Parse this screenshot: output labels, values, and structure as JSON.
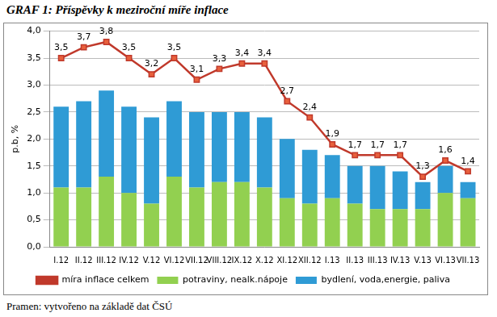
{
  "chart_data": {
    "type": "bar",
    "title": "GRAF 1: Příspěvky k meziroční míře inflace",
    "source": "Pramen: vytvořeno na základě dat ČSÚ",
    "y_label": "p.b, %",
    "categories": [
      "I.12",
      "II.12",
      "III.12",
      "IV.12",
      "V.12",
      "VI.12",
      "VII.12",
      "VIII.12",
      "IX.12",
      "X.12",
      "XI.12",
      "XII.12",
      "I.13",
      "II.13",
      "III.13",
      "IV.13",
      "V.13",
      "VI.13",
      "VII.13"
    ],
    "stacked": true,
    "grid": true,
    "legend": "bottom",
    "ylim": [
      0,
      4
    ],
    "yticks": [
      {
        "value": 0,
        "label": "0,0"
      },
      {
        "value": 0.5,
        "label": "0,5"
      },
      {
        "value": 1,
        "label": "1,0"
      },
      {
        "value": 1.5,
        "label": "1,5"
      },
      {
        "value": 2,
        "label": "2,0"
      },
      {
        "value": 2.5,
        "label": "2,5"
      },
      {
        "value": 3,
        "label": "3,0"
      },
      {
        "value": 3.5,
        "label": "3,5"
      },
      {
        "value": 4,
        "label": "4,0"
      }
    ],
    "series": [
      {
        "name": "potraviny, nealk.nápoje",
        "type": "bar",
        "color": "#92d050",
        "values": [
          1.1,
          1.1,
          1.3,
          1.0,
          0.8,
          1.3,
          1.1,
          1.2,
          1.2,
          1.1,
          0.9,
          0.8,
          0.9,
          0.8,
          0.7,
          0.7,
          0.7,
          1.0,
          0.9
        ]
      },
      {
        "name": "bydlení, voda,energie, paliva",
        "type": "bar",
        "color": "#2f9bd5",
        "values": [
          1.5,
          1.6,
          1.6,
          1.6,
          1.6,
          1.4,
          1.4,
          1.3,
          1.3,
          1.3,
          1.1,
          1.0,
          0.8,
          0.7,
          0.8,
          0.7,
          0.5,
          0.5,
          0.3
        ]
      },
      {
        "name": "míra inflace celkem",
        "type": "line",
        "color": "#c0392b",
        "marker": "square",
        "data_labels": true,
        "values": [
          3.5,
          3.7,
          3.8,
          3.5,
          3.2,
          3.5,
          3.1,
          3.3,
          3.4,
          3.4,
          2.7,
          2.4,
          1.9,
          1.7,
          1.7,
          1.7,
          1.3,
          1.6,
          1.4
        ],
        "value_labels": [
          "3,5",
          "3,7",
          "3,8",
          "3,5",
          "3,2",
          "3,5",
          "3,1",
          "3,3",
          "3,4",
          "3,4",
          "2,7",
          "2,4",
          "1,9",
          "1,7",
          "1,7",
          "1,7",
          "1,3",
          "1,6",
          "1,4"
        ]
      }
    ]
  }
}
